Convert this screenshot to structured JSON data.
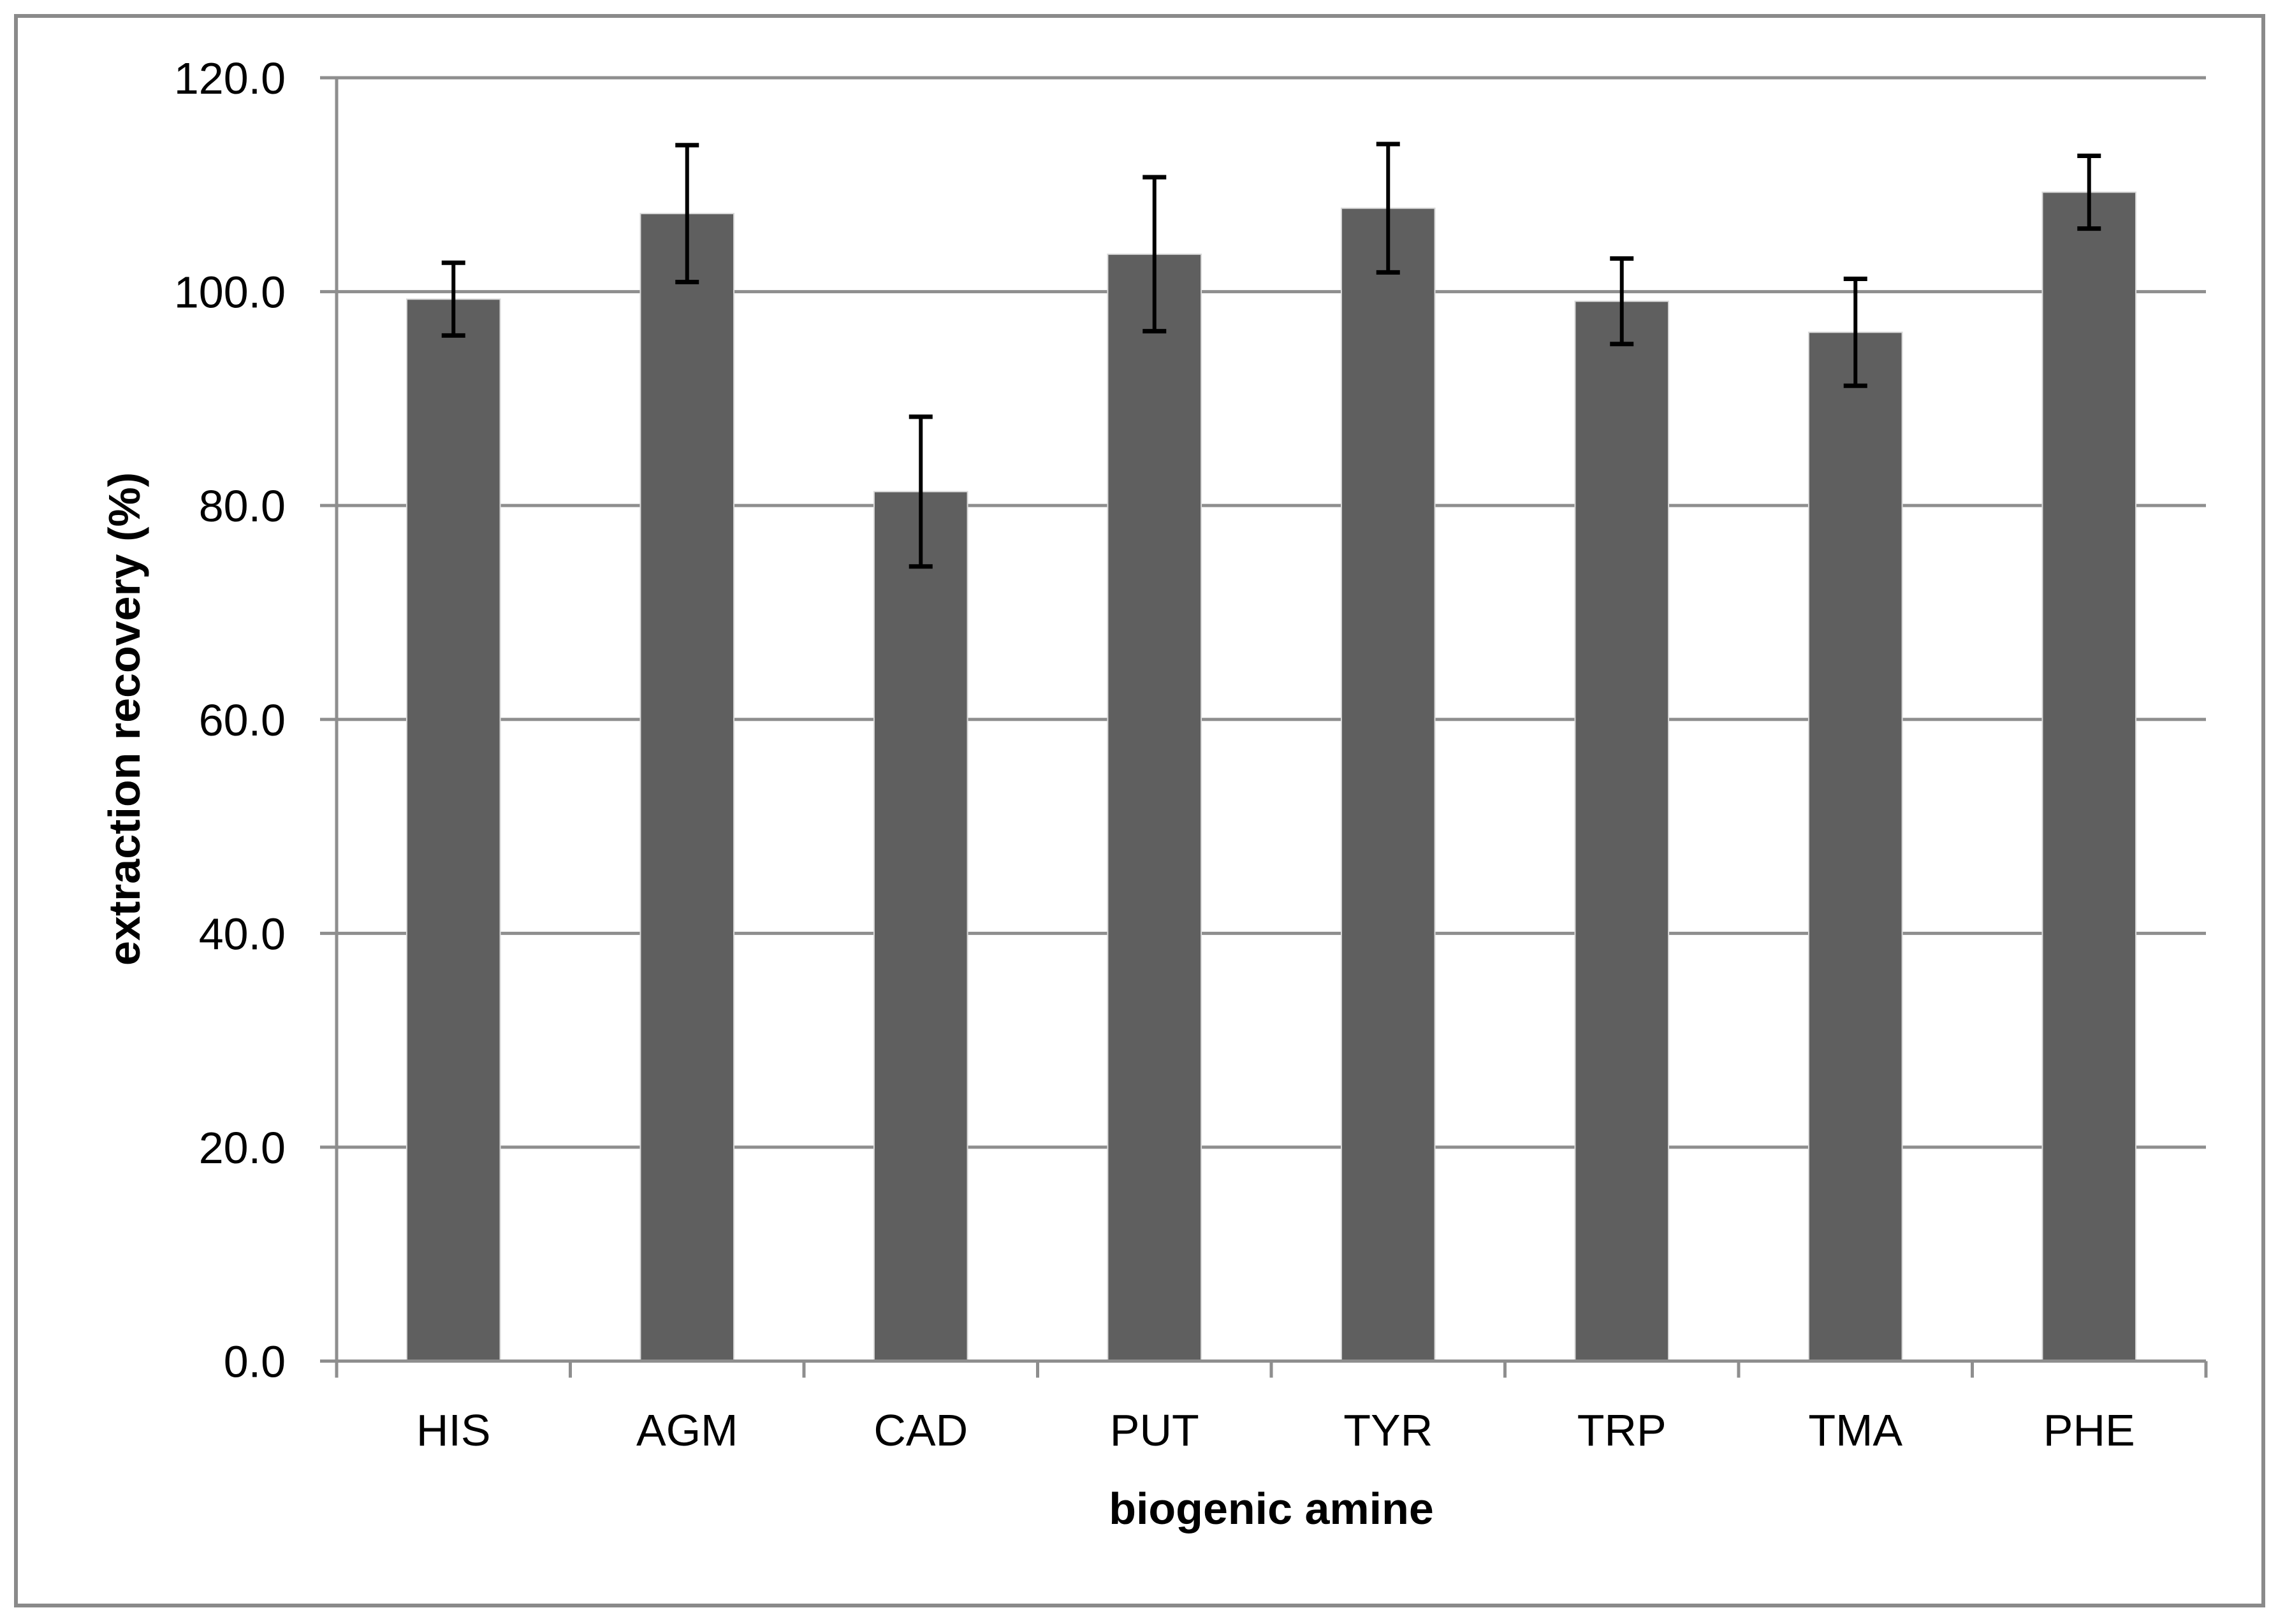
{
  "figure": {
    "background": "#ffffff",
    "border_color": "#8a8a8a"
  },
  "chart_data": {
    "type": "bar",
    "title": "",
    "xlabel": "biogenic amine",
    "ylabel": "extraction recovery (%)",
    "categories": [
      "HIS",
      "AGM",
      "CAD",
      "PUT",
      "TYR",
      "TRP",
      "TMA",
      "PHE"
    ],
    "values": [
      99.3,
      107.3,
      81.3,
      103.5,
      107.8,
      99.1,
      96.2,
      109.3
    ],
    "error_bars": [
      3.4,
      6.4,
      7.0,
      7.2,
      6.0,
      4.0,
      5.0,
      3.4
    ],
    "ylim": [
      0,
      120
    ],
    "ytick_step": 20,
    "ytick_labels": [
      "0.0",
      "20.0",
      "40.0",
      "60.0",
      "80.0",
      "100.0",
      "120.0"
    ],
    "grid": true,
    "legend": "none",
    "bar_color": "#5f5f5f",
    "bar_edge_color": "#d9d9d9",
    "grid_color": "#8e8e8e",
    "axis_color": "#8e8e8e",
    "error_color": "#000000",
    "tick_label_color": "#000000"
  }
}
